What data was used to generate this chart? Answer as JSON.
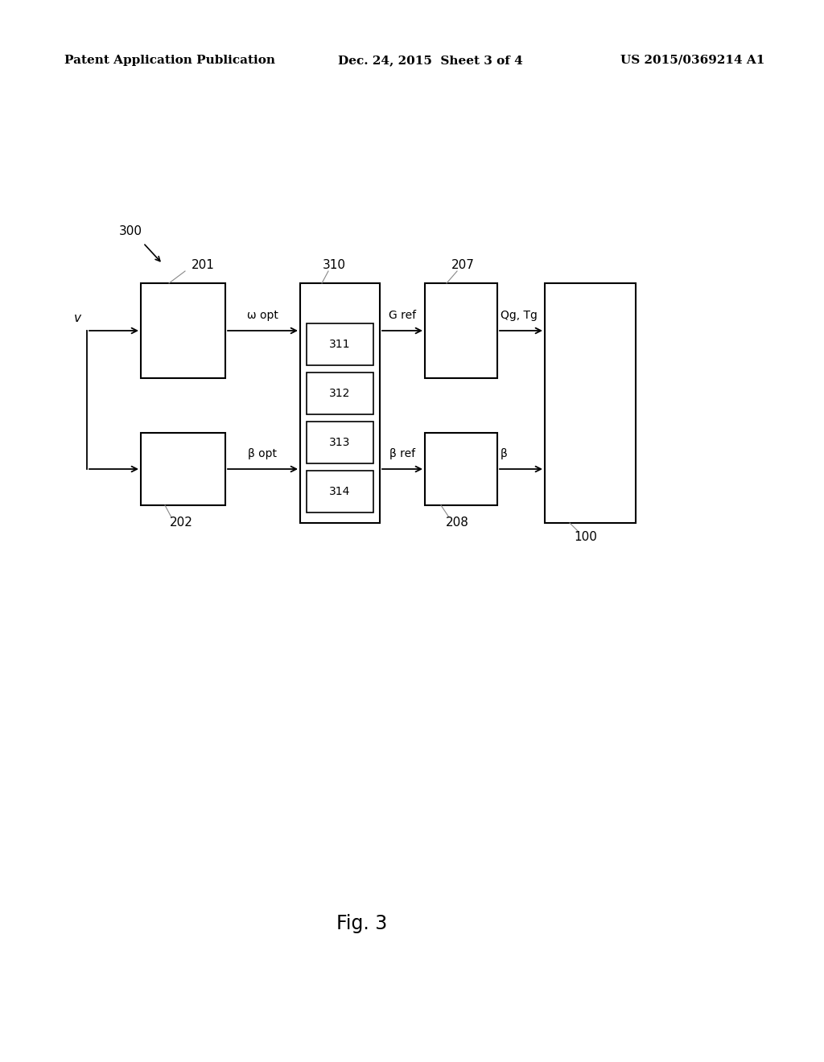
{
  "bg_color": "#ffffff",
  "header_left": "Patent Application Publication",
  "header_mid": "Dec. 24, 2015  Sheet 3 of 4",
  "header_right": "US 2015/0369214 A1",
  "fig_label": "Fig. 3",
  "label_300": "300",
  "label_201": "201",
  "label_202": "202",
  "label_310": "310",
  "label_207": "207",
  "label_208": "208",
  "label_100": "100",
  "sub_labels": [
    "311",
    "312",
    "313",
    "314"
  ],
  "text_color": "#000000",
  "line_color": "#000000",
  "gray_color": "#888888"
}
